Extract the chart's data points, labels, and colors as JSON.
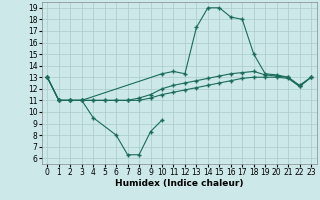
{
  "xlabel": "Humidex (Indice chaleur)",
  "xlim": [
    -0.5,
    23.5
  ],
  "ylim": [
    5.5,
    19.5
  ],
  "yticks": [
    6,
    7,
    8,
    9,
    10,
    11,
    12,
    13,
    14,
    15,
    16,
    17,
    18,
    19
  ],
  "xticks": [
    0,
    1,
    2,
    3,
    4,
    5,
    6,
    7,
    8,
    9,
    10,
    11,
    12,
    13,
    14,
    15,
    16,
    17,
    18,
    19,
    20,
    21,
    22,
    23
  ],
  "bg_color": "#cce8e8",
  "grid_color": "#aacccc",
  "line_color": "#1a6b5a",
  "line1_x": [
    0,
    1,
    2,
    3,
    4,
    6,
    7,
    8,
    9,
    10
  ],
  "line1_y": [
    13,
    11,
    11,
    11,
    9.5,
    8,
    6.3,
    6.3,
    8.3,
    9.3
  ],
  "line2_x": [
    0,
    1,
    2,
    3,
    4,
    5,
    6,
    7,
    8,
    9,
    10,
    11,
    12,
    13,
    14,
    15,
    16,
    17,
    18,
    19,
    20,
    21,
    22,
    23
  ],
  "line2_y": [
    13,
    11,
    11,
    11,
    11,
    11,
    11,
    11,
    11,
    11.2,
    11.5,
    11.7,
    11.9,
    12.1,
    12.3,
    12.5,
    12.7,
    12.9,
    13.0,
    13.0,
    13.0,
    12.9,
    12.2,
    13.0
  ],
  "line3_x": [
    0,
    1,
    2,
    3,
    4,
    5,
    6,
    7,
    8,
    9,
    10,
    11,
    12,
    13,
    14,
    15,
    16,
    17,
    18,
    19,
    20,
    21,
    22,
    23
  ],
  "line3_y": [
    13,
    11,
    11,
    11,
    11,
    11,
    11,
    11,
    11.2,
    11.5,
    12.0,
    12.3,
    12.5,
    12.7,
    12.9,
    13.1,
    13.3,
    13.4,
    13.5,
    13.2,
    13.1,
    13.0,
    12.3,
    13.0
  ],
  "line4_x": [
    0,
    1,
    2,
    3,
    10,
    11,
    12,
    13,
    14,
    15,
    16,
    17,
    18,
    19,
    20,
    21,
    22,
    23
  ],
  "line4_y": [
    13,
    11,
    11,
    11,
    13.3,
    13.5,
    13.3,
    17.3,
    19.0,
    19.0,
    18.2,
    18.0,
    15.0,
    13.3,
    13.2,
    13.0,
    12.2,
    13.0
  ]
}
